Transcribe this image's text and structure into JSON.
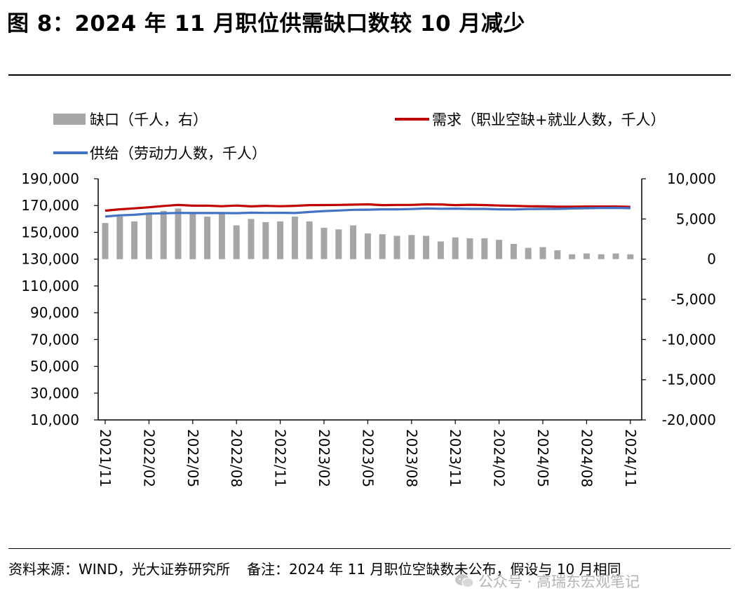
{
  "header": {
    "title": "图 8：2024 年 11 月职位供需缺口数较 10 月减少"
  },
  "legend": {
    "gap": "缺口（千人，右）",
    "demand": "需求（职业空缺+就业人数，千人）",
    "supply": "供给（劳动力人数，千人）"
  },
  "footer": {
    "source": "资料来源：WIND，光大证券研究所",
    "note": "备注：2024 年 11 月职位空缺数未公布，假设与 10 月相同",
    "watermark": "公众号 · 高瑞东宏观笔记"
  },
  "colors": {
    "gap": "#a6a6a6",
    "demand": "#c00000",
    "supply": "#4472c4"
  },
  "chart_data": {
    "type": "bar+line",
    "title": "图 8：2024 年 11 月职位供需缺口数较 10 月减少",
    "categories": [
      "2021/11",
      "2021/12",
      "2022/01",
      "2022/02",
      "2022/03",
      "2022/04",
      "2022/05",
      "2022/06",
      "2022/07",
      "2022/08",
      "2022/09",
      "2022/10",
      "2022/11",
      "2022/12",
      "2023/01",
      "2023/02",
      "2023/03",
      "2023/04",
      "2023/05",
      "2023/06",
      "2023/07",
      "2023/08",
      "2023/09",
      "2023/10",
      "2023/11",
      "2023/12",
      "2024/01",
      "2024/02",
      "2024/03",
      "2024/04",
      "2024/05",
      "2024/06",
      "2024/07",
      "2024/08",
      "2024/09",
      "2024/10",
      "2024/11"
    ],
    "x_tick_labels": [
      "2021/11",
      "2022/02",
      "2022/05",
      "2022/08",
      "2022/11",
      "2023/02",
      "2023/05",
      "2023/08",
      "2023/11",
      "2024/02",
      "2024/05",
      "2024/08",
      "2024/11"
    ],
    "left_axis": {
      "range": [
        10000,
        190000
      ],
      "ticks": [
        "10,000",
        "30,000",
        "50,000",
        "70,000",
        "90,000",
        "110,000",
        "130,000",
        "150,000",
        "170,000",
        "190,000"
      ]
    },
    "right_axis": {
      "range": [
        -20000,
        10000
      ],
      "ticks": [
        "-20,000",
        "-15,000",
        "-10,000",
        "-5,000",
        "0",
        "5,000",
        "10,000"
      ]
    },
    "series": [
      {
        "name": "缺口（千人，右）",
        "axis": "right",
        "kind": "bar",
        "values": [
          4500,
          5300,
          4700,
          5600,
          6000,
          6300,
          5800,
          5300,
          5600,
          4200,
          5000,
          4600,
          4700,
          5300,
          4700,
          3900,
          3700,
          4200,
          3200,
          3100,
          2900,
          3000,
          2900,
          2200,
          2700,
          2600,
          2600,
          2400,
          1900,
          1400,
          1500,
          1100,
          600,
          700,
          600,
          700,
          600
        ]
      },
      {
        "name": "需求（职业空缺+就业人数，千人）",
        "axis": "left",
        "kind": "line",
        "values": [
          166200,
          167200,
          167900,
          168700,
          169700,
          170500,
          169900,
          169900,
          169500,
          170000,
          169400,
          169800,
          169500,
          169800,
          170300,
          170400,
          170500,
          170700,
          170900,
          170300,
          170500,
          170500,
          170900,
          170800,
          170300,
          170600,
          170400,
          170000,
          169800,
          169500,
          169400,
          169200,
          169100,
          169300,
          169300,
          169300,
          169000
        ]
      },
      {
        "name": "供给（劳动力人数，千人）",
        "axis": "left",
        "kind": "line",
        "values": [
          161800,
          162700,
          163100,
          164000,
          164200,
          164500,
          164400,
          164400,
          164400,
          164300,
          164700,
          164500,
          164600,
          164400,
          165200,
          165900,
          166300,
          166800,
          166900,
          167200,
          167200,
          167400,
          167800,
          167600,
          167700,
          167500,
          167500,
          167200,
          167100,
          167400,
          167500,
          167500,
          167800,
          168000,
          168200,
          168300,
          168000
        ]
      }
    ]
  }
}
